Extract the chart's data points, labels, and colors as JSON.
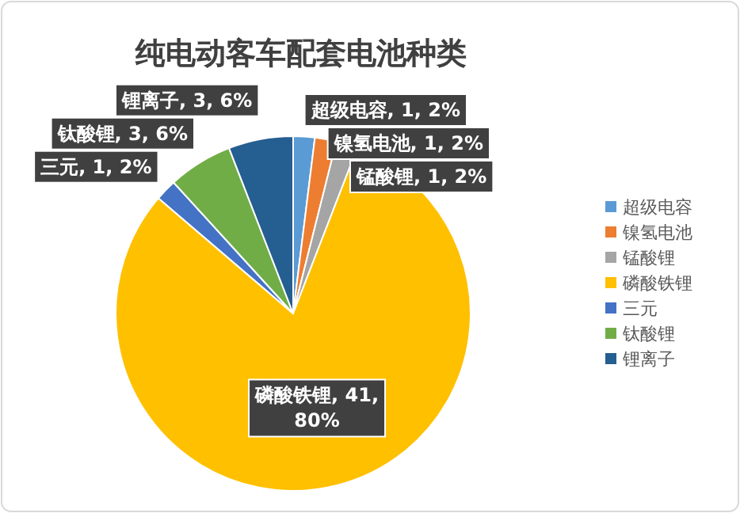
{
  "chart_data": {
    "type": "pie",
    "title": "纯电动客车配套电池种类",
    "categories": [
      "超级电容",
      "镍氢电池",
      "锰酸锂",
      "磷酸铁锂",
      "三元",
      "钛酸锂",
      "锂离子"
    ],
    "values": [
      1,
      1,
      1,
      41,
      1,
      3,
      3
    ],
    "colors": [
      "#5b9bd5",
      "#ed7d31",
      "#a5a5a5",
      "#ffc000",
      "#4472c4",
      "#70ad47",
      "#255e91"
    ],
    "value_labels": [
      "超级电容, 1, 2%",
      "镍氢电池, 1, 2%",
      "锰酸锂, 1, 2%",
      "磷酸铁锂, 41, 80%",
      "三元, 1, 2%",
      "钛酸锂, 3, 6%",
      "锂离子, 3, 6%"
    ],
    "legend": "right"
  }
}
